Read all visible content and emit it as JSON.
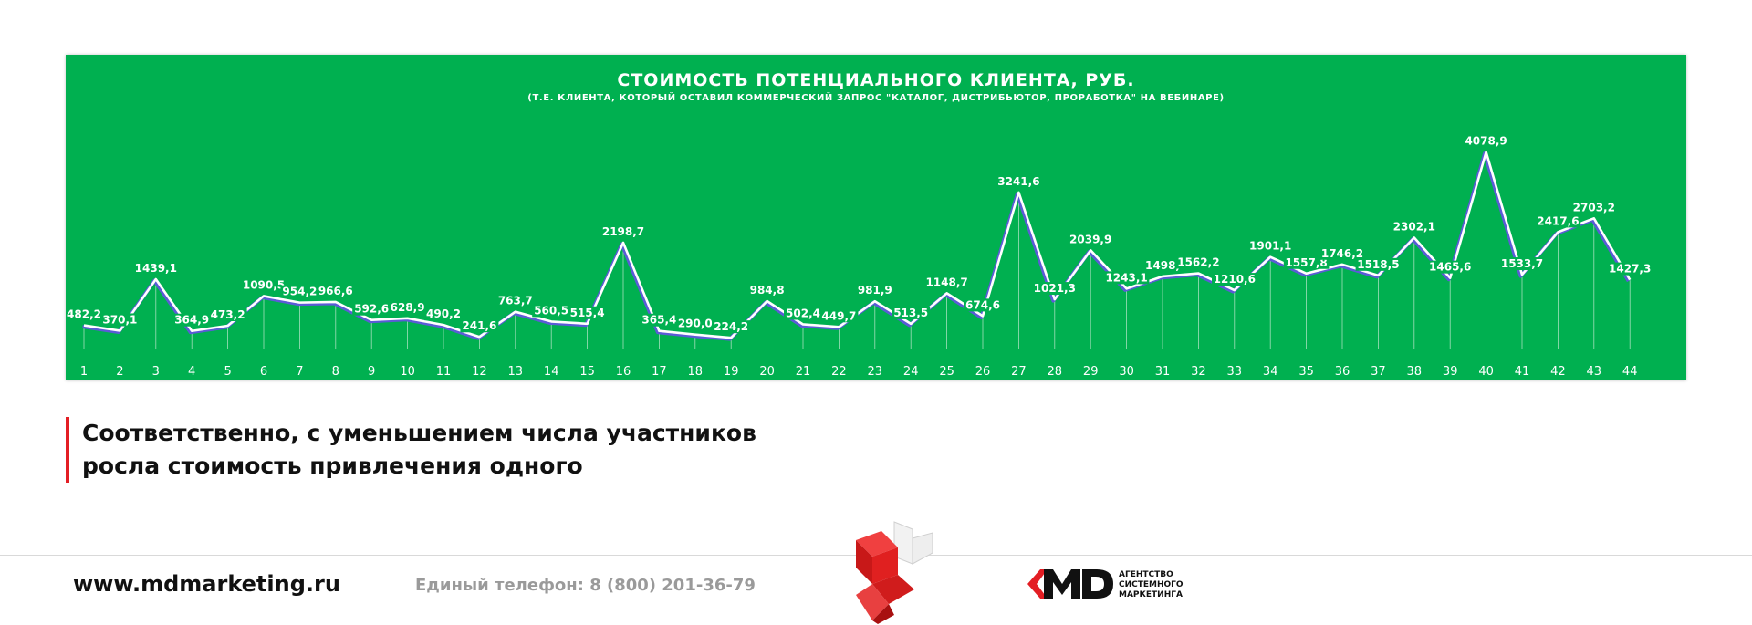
{
  "chart_data": {
    "type": "line",
    "title": "СТОИМОСТЬ ПОТЕНЦИАЛЬНОГО КЛИЕНТА, РУБ.",
    "subtitle": "(Т.Е. КЛИЕНТА, КОТОРЫЙ ОСТАВИЛ КОММЕРЧЕСКИЙ ЗАПРОС \"КАТАЛОГ, ДИСТРИБЬЮТОР, ПРОРАБОТКА\" НА ВЕБИНАРЕ)",
    "categories": [
      "1",
      "2",
      "3",
      "4",
      "5",
      "6",
      "7",
      "8",
      "9",
      "10",
      "11",
      "12",
      "13",
      "14",
      "15",
      "16",
      "17",
      "18",
      "19",
      "20",
      "21",
      "22",
      "23",
      "24",
      "25",
      "26",
      "27",
      "28",
      "29",
      "30",
      "31",
      "32",
      "33",
      "34",
      "35",
      "36",
      "37",
      "38",
      "39",
      "40",
      "41",
      "42",
      "43",
      "44"
    ],
    "values": [
      482.2,
      370.1,
      1439.1,
      364.9,
      473.2,
      1090.5,
      954.2,
      966.6,
      592.6,
      628.9,
      490.2,
      241.6,
      763.7,
      560.5,
      515.4,
      2198.7,
      365.4,
      290.0,
      224.2,
      984.8,
      502.4,
      449.7,
      981.9,
      513.5,
      1148.7,
      674.6,
      3241.6,
      1021.3,
      2039.9,
      1243.1,
      1498.0,
      1562.2,
      1210.6,
      1901.1,
      1557.8,
      1746.2,
      1518.5,
      2302.1,
      1465.6,
      4078.9,
      1533.7,
      2417.6,
      2703.2,
      1427.3
    ],
    "labels": [
      "482,2",
      "370,1",
      "1439,1",
      "364,9",
      "473,2",
      "1090,5",
      "954,2",
      "966,6",
      "592,6",
      "628,9",
      "490,2",
      "241,6",
      "763,7",
      "560,5",
      "515,4",
      "2198,7",
      "365,4",
      "290,0",
      "224,2",
      "984,8",
      "502,4",
      "449,7",
      "981,9",
      "513,5",
      "1148,7",
      "674,6",
      "3241,6",
      "1021,3",
      "2039,9",
      "1243,1",
      "1498,",
      "1562,2",
      "1210,6",
      "1901,1",
      "1557,8",
      "1746,2",
      "1518,5",
      "2302,1",
      "1465,6",
      "4078,9",
      "1533,7",
      "2417,6",
      "2703,2",
      "1427,3"
    ],
    "ylim": [
      0,
      4300
    ],
    "grid": false,
    "colors": {
      "background": "#00b050",
      "line": "#ffffff",
      "line_shadow": "#5b5bd6",
      "drop_lines": "#e8f5e9",
      "text": "#ffffff"
    }
  },
  "slide_text": {
    "line1": "Соответственно, с уменьшением числа участников",
    "line2": "росла стоимость привлечения одного",
    "accent_color": "#e31e24"
  },
  "footer": {
    "url": "www.mdmarketing.ru",
    "phone": "Единый телефон: 8 (800) 201-36-79",
    "logo_lines": [
      "АГЕНТСТВО",
      "СИСТЕМНОГО",
      "МАРКЕТИНГА"
    ],
    "emblem_icon": "red-isometric-emblem-icon",
    "logo_icon": "md-logo-icon"
  }
}
